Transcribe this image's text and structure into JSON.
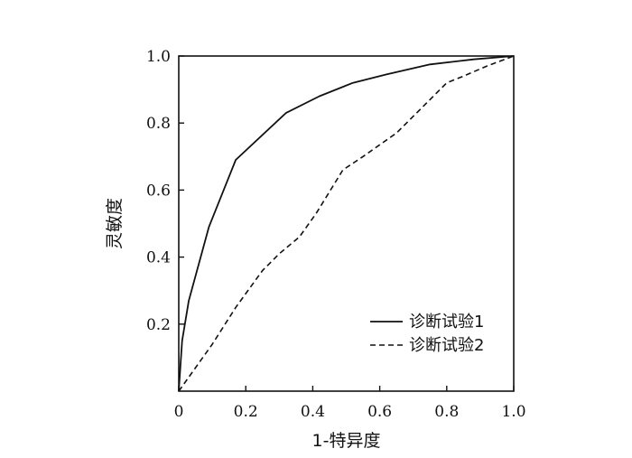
{
  "chart_data": {
    "type": "line",
    "title": "",
    "xlabel": "1-特异度",
    "ylabel": "灵敏度",
    "xlim": [
      0,
      1
    ],
    "ylim": [
      0,
      1
    ],
    "x_ticks": [
      "0",
      "0.2",
      "0.4",
      "0.6",
      "0.8",
      "1.0"
    ],
    "y_ticks": [
      "0.2",
      "0.4",
      "0.6",
      "0.8",
      "1.0"
    ],
    "grid": false,
    "legend_position": "bottom-right",
    "series": [
      {
        "name": "诊断试验1",
        "line_style": "solid",
        "color": "#111111",
        "x": [
          0,
          0.01,
          0.03,
          0.09,
          0.17,
          0.32,
          0.42,
          0.52,
          0.62,
          0.75,
          0.88,
          1.0
        ],
        "y": [
          0,
          0.15,
          0.27,
          0.49,
          0.69,
          0.83,
          0.88,
          0.92,
          0.945,
          0.975,
          0.99,
          1.0
        ]
      },
      {
        "name": "诊断试验2",
        "line_style": "dashed",
        "color": "#111111",
        "x": [
          0,
          0.05,
          0.1,
          0.17,
          0.25,
          0.3,
          0.36,
          0.41,
          0.49,
          0.55,
          0.65,
          0.73,
          0.8,
          0.85,
          0.92,
          1.0
        ],
        "y": [
          0,
          0.07,
          0.14,
          0.25,
          0.36,
          0.41,
          0.46,
          0.53,
          0.66,
          0.7,
          0.77,
          0.85,
          0.92,
          0.94,
          0.97,
          1.0
        ]
      }
    ]
  }
}
